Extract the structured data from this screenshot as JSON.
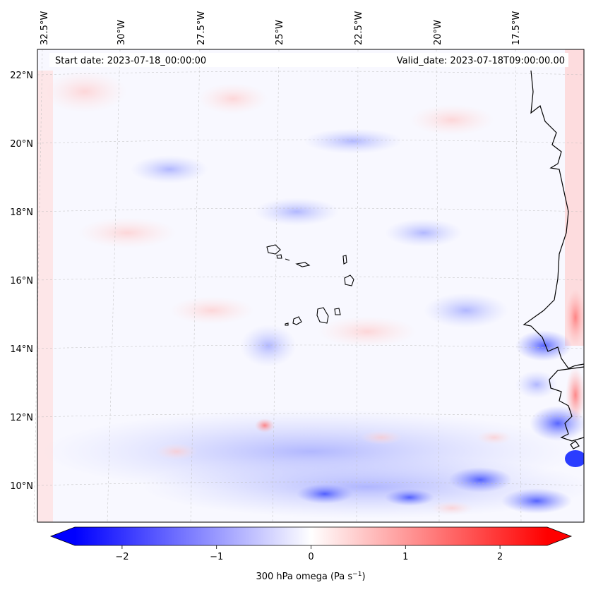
{
  "map": {
    "header_left": "Start date: 2023-07-18_00:00:00",
    "header_right": "Valid_date: 2023-07-18T09:00:00.00",
    "lon_labels": [
      "32.5°W",
      "30°W",
      "27.5°W",
      "25°W",
      "22.5°W",
      "20°W",
      "17.5°W"
    ],
    "lat_labels": [
      "22°N",
      "20°N",
      "18°N",
      "16°N",
      "14°N",
      "12°N",
      "10°N"
    ],
    "field": "300 hPa omega",
    "colormap": "bwr",
    "gridlines": true
  },
  "colorbar": {
    "label_main": "300 hPa omega (Pa s",
    "label_exp": "−1",
    "label_close": ")",
    "ticks": [
      "−2",
      "−1",
      "0",
      "1",
      "2"
    ],
    "tick_values": [
      -2,
      -1,
      0,
      1,
      2
    ],
    "range": [
      -2.5,
      2.5
    ],
    "extend": "both",
    "colors": {
      "low": "#0000ff",
      "mid": "#ffffff",
      "high": "#ff0000"
    }
  }
}
